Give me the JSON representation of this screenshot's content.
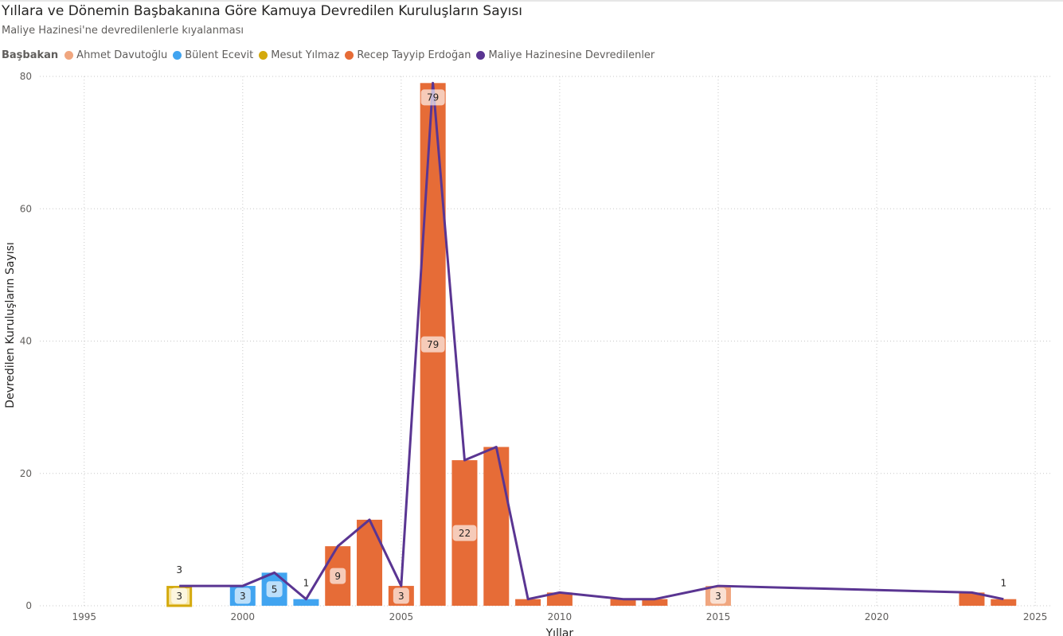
{
  "header": {
    "title": "Yıllara ve Dönemin Başbakanına Göre Kamuya Devredilen Kuruluşların Sayısı",
    "subtitle": "Maliye Hazinesi'ne devredilenlerle kıyalanması"
  },
  "legend": {
    "title": "Başbakan",
    "items": [
      {
        "label": "Ahmet Davutoğlu",
        "color": "#f0a67f"
      },
      {
        "label": "Bülent Ecevit",
        "color": "#41a4f0"
      },
      {
        "label": "Mesut Yılmaz",
        "color": "#d4a90c"
      },
      {
        "label": "Recep Tayyip Erdoğan",
        "color": "#e66c37"
      },
      {
        "label": "Maliye Hazinesine Devredilenler",
        "color": "#5a3592"
      }
    ]
  },
  "chart_data": {
    "type": "bar",
    "xlabel": "Yıllar",
    "ylabel": "Devredilen Kuruluşların Sayısı",
    "xlim": [
      1993.6,
      2025.5
    ],
    "ylim": [
      0,
      80
    ],
    "x_ticks": [
      1995,
      2000,
      2005,
      2010,
      2015,
      2020,
      2025
    ],
    "y_ticks": [
      0,
      20,
      40,
      60,
      80
    ],
    "grid": true,
    "legend_position": "top-left",
    "bars": [
      {
        "year": 1998,
        "value": 3,
        "pm": "Mesut Yılmaz",
        "label": "3"
      },
      {
        "year": 2000,
        "value": 3,
        "pm": "Bülent Ecevit",
        "label": "3"
      },
      {
        "year": 2001,
        "value": 5,
        "pm": "Bülent Ecevit",
        "label": "5"
      },
      {
        "year": 2002,
        "value": 1,
        "pm": "Bülent Ecevit",
        "label": ""
      },
      {
        "year": 2003,
        "value": 9,
        "pm": "Recep Tayyip Erdoğan",
        "label": "9"
      },
      {
        "year": 2004,
        "value": 13,
        "pm": "Recep Tayyip Erdoğan",
        "label": ""
      },
      {
        "year": 2005,
        "value": 3,
        "pm": "Recep Tayyip Erdoğan",
        "label": "3"
      },
      {
        "year": 2006,
        "value": 79,
        "pm": "Recep Tayyip Erdoğan",
        "label": "79"
      },
      {
        "year": 2007,
        "value": 22,
        "pm": "Recep Tayyip Erdoğan",
        "label": "22"
      },
      {
        "year": 2008,
        "value": 24,
        "pm": "Recep Tayyip Erdoğan",
        "label": ""
      },
      {
        "year": 2009,
        "value": 1,
        "pm": "Recep Tayyip Erdoğan",
        "label": ""
      },
      {
        "year": 2010,
        "value": 2,
        "pm": "Recep Tayyip Erdoğan",
        "label": ""
      },
      {
        "year": 2012,
        "value": 1,
        "pm": "Recep Tayyip Erdoğan",
        "label": ""
      },
      {
        "year": 2013,
        "value": 1,
        "pm": "Recep Tayyip Erdoğan",
        "label": ""
      },
      {
        "year": 2015,
        "value": 3,
        "pm": "Ahmet Davutoğlu",
        "label": "3"
      },
      {
        "year": 2023,
        "value": 2,
        "pm": "Recep Tayyip Erdoğan",
        "label": ""
      },
      {
        "year": 2024,
        "value": 1,
        "pm": "Recep Tayyip Erdoğan",
        "label": ""
      }
    ],
    "line": {
      "name": "Maliye Hazinesine Devredilenler",
      "points": [
        {
          "x": 1998,
          "y": 3
        },
        {
          "x": 2000,
          "y": 3
        },
        {
          "x": 2001,
          "y": 5
        },
        {
          "x": 2002,
          "y": 1
        },
        {
          "x": 2003,
          "y": 9
        },
        {
          "x": 2004,
          "y": 13
        },
        {
          "x": 2005,
          "y": 3
        },
        {
          "x": 2006,
          "y": 79
        },
        {
          "x": 2007,
          "y": 22
        },
        {
          "x": 2008,
          "y": 24
        },
        {
          "x": 2009,
          "y": 1
        },
        {
          "x": 2010,
          "y": 2
        },
        {
          "x": 2012,
          "y": 1
        },
        {
          "x": 2013,
          "y": 1
        },
        {
          "x": 2015,
          "y": 3
        },
        {
          "x": 2023,
          "y": 2
        },
        {
          "x": 2024,
          "y": 1
        }
      ],
      "labels": [
        {
          "x": 1998,
          "y": 3,
          "text": "3"
        },
        {
          "x": 2002,
          "y": 1,
          "text": "1"
        },
        {
          "x": 2006,
          "y": 79,
          "text": "79"
        },
        {
          "x": 2024,
          "y": 1,
          "text": "1"
        }
      ]
    }
  }
}
